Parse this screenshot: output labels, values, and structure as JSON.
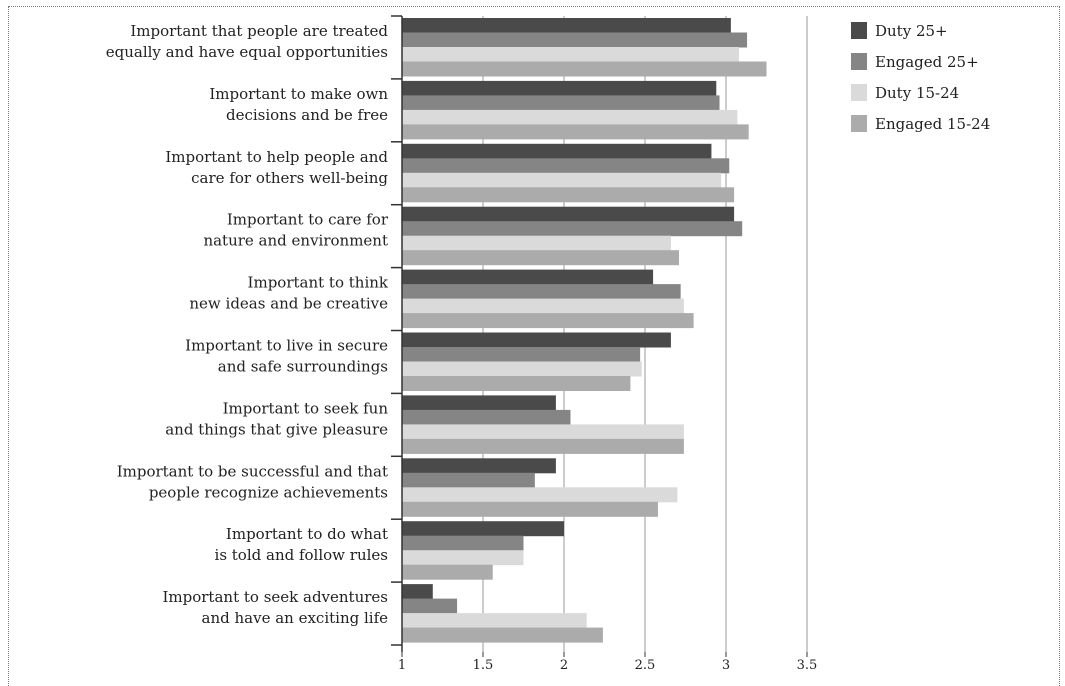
{
  "chart_data": {
    "type": "bar",
    "orientation": "horizontal",
    "categories": [
      [
        "Important that people are treated",
        "equally and have equal opportunities"
      ],
      [
        "Important to make own",
        "decisions and be free"
      ],
      [
        "Important to help people and",
        "care for others well-being"
      ],
      [
        "Important to care for",
        "nature and environment"
      ],
      [
        "Important to think",
        "new ideas and be creative"
      ],
      [
        "Important to live in secure",
        "and safe surroundings"
      ],
      [
        "Important to seek fun",
        "and things that give pleasure"
      ],
      [
        "Important to be successful and that",
        "people recognize achievements"
      ],
      [
        "Important to do what",
        "is told and follow rules"
      ],
      [
        "Important to seek adventures",
        "and have an exciting life"
      ]
    ],
    "series": [
      {
        "name": "Duty 25+",
        "color": "#4a4a4a",
        "values": [
          3.03,
          2.94,
          2.91,
          3.05,
          2.55,
          2.66,
          1.95,
          1.95,
          2.0,
          1.19
        ]
      },
      {
        "name": "Engaged 25+",
        "color": "#858585",
        "values": [
          3.13,
          2.96,
          3.02,
          3.1,
          2.72,
          2.47,
          2.04,
          1.82,
          1.75,
          1.34
        ]
      },
      {
        "name": "Duty 15-24",
        "color": "#dadada",
        "values": [
          3.08,
          3.07,
          2.97,
          2.66,
          2.74,
          2.48,
          2.74,
          2.7,
          1.75,
          2.14
        ]
      },
      {
        "name": "Engaged 15-24",
        "color": "#ababab",
        "values": [
          3.25,
          3.14,
          3.05,
          2.71,
          2.8,
          2.41,
          2.74,
          2.58,
          1.56,
          2.24
        ]
      }
    ],
    "xlim": [
      1,
      3.5
    ],
    "xticks": [
      "1",
      "1.5",
      "2",
      "2.5",
      "3",
      "3.5"
    ],
    "grid": "vertical",
    "legend": "top-right",
    "title": "",
    "xlabel": "",
    "ylabel": ""
  }
}
